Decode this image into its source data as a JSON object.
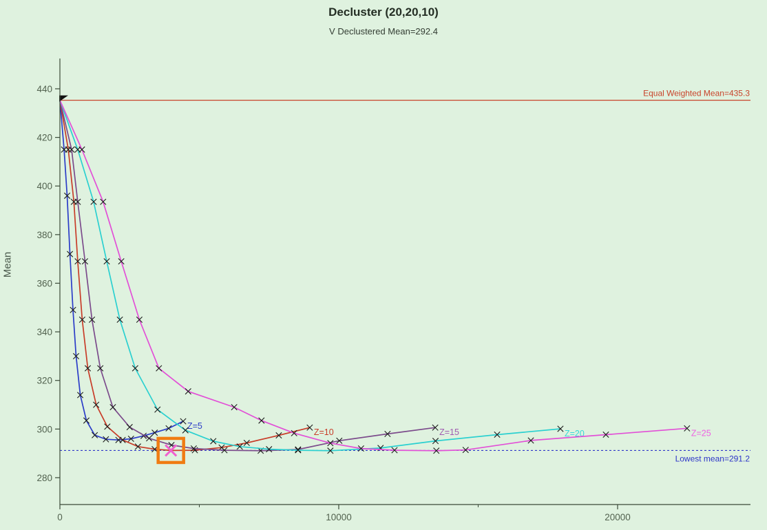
{
  "header": {
    "title": "Decluster (20,20,10)",
    "subtitle": "V Declustered Mean=292.4"
  },
  "chart_data": {
    "type": "line",
    "title": "Decluster (20,20,10)",
    "subtitle": "V Declustered Mean=292.4",
    "xlabel": "",
    "ylabel": "Mean",
    "xlim": [
      0,
      24765
    ],
    "ylim": [
      269,
      452
    ],
    "x_ticks_major": [
      0,
      10000,
      20000
    ],
    "x_ticks_minor": [
      5000,
      15000
    ],
    "y_ticks": [
      280,
      300,
      320,
      340,
      360,
      380,
      400,
      420,
      440
    ],
    "grid": "off",
    "axis_color": "#3a4a38",
    "tick_label_color": "#52624f",
    "marker_color": "#1b1b1b",
    "ref_lines": [
      {
        "name": "equal-weighted-mean",
        "value": 435.3,
        "label": "Equal Weighted Mean=435.3",
        "color": "#c8432a",
        "style": "solid"
      },
      {
        "name": "lowest-mean",
        "value": 291.2,
        "label": "Lowest mean=291.2",
        "color": "#2c34c8",
        "style": "dashed"
      }
    ],
    "start_point": {
      "x": 0,
      "y": 435.3,
      "color": "#111111"
    },
    "highlight": {
      "series": "Z=10",
      "x": 3980,
      "y": 291.2,
      "marker_color": "#f060cf",
      "box_color": "#f07c12"
    },
    "series": [
      {
        "name": "Z=5",
        "color": "#2b3cc8",
        "label_color": "#2b3cc8",
        "points": [
          [
            0,
            435.3
          ],
          [
            150,
            415
          ],
          [
            260,
            396
          ],
          [
            360,
            372
          ],
          [
            470,
            349
          ],
          [
            580,
            330
          ],
          [
            730,
            314
          ],
          [
            950,
            303.5
          ],
          [
            1250,
            297.5
          ],
          [
            1650,
            295.8
          ],
          [
            2100,
            295.5
          ],
          [
            2550,
            296
          ],
          [
            3000,
            297.2
          ],
          [
            3400,
            298.5
          ],
          [
            3900,
            300.3
          ],
          [
            4420,
            303.2
          ]
        ]
      },
      {
        "name": "Z=10",
        "color": "#c83c28",
        "label_color": "#c83c28",
        "points": [
          [
            0,
            435.3
          ],
          [
            300,
            415
          ],
          [
            500,
            393.5
          ],
          [
            640,
            369
          ],
          [
            800,
            345
          ],
          [
            1000,
            325
          ],
          [
            1300,
            310
          ],
          [
            1700,
            301
          ],
          [
            2250,
            295.5
          ],
          [
            2800,
            292.8
          ],
          [
            3400,
            291.7
          ],
          [
            3980,
            291.2
          ],
          [
            4840,
            291.3
          ],
          [
            5800,
            292.4
          ],
          [
            6700,
            294.3
          ],
          [
            7850,
            297.4
          ],
          [
            8960,
            300.6
          ]
        ]
      },
      {
        "name": "Z=15",
        "color": "#7b4a8b",
        "label_color": "#a05ab0",
        "points": [
          [
            0,
            435.3
          ],
          [
            420,
            415
          ],
          [
            640,
            393.5
          ],
          [
            900,
            369
          ],
          [
            1150,
            345
          ],
          [
            1450,
            325
          ],
          [
            1900,
            309
          ],
          [
            2500,
            300.8
          ],
          [
            3200,
            296.2
          ],
          [
            4000,
            293.4
          ],
          [
            4800,
            292
          ],
          [
            5900,
            291.3
          ],
          [
            7200,
            291.1
          ],
          [
            8540,
            291.6
          ],
          [
            10020,
            295.2
          ],
          [
            11750,
            298
          ],
          [
            13460,
            300.6
          ]
        ]
      },
      {
        "name": "Z=20",
        "color": "#2ad0d0",
        "label_color": "#35d8d8",
        "points": [
          [
            0,
            435.3
          ],
          [
            640,
            415
          ],
          [
            1210,
            393.5
          ],
          [
            1680,
            369
          ],
          [
            2150,
            345
          ],
          [
            2700,
            325
          ],
          [
            3500,
            308
          ],
          [
            4500,
            299.5
          ],
          [
            5500,
            295
          ],
          [
            6450,
            292.8
          ],
          [
            7500,
            291.7
          ],
          [
            8540,
            291.3
          ],
          [
            9700,
            291.1
          ],
          [
            11500,
            292.2
          ],
          [
            13470,
            295.1
          ],
          [
            15680,
            297.7
          ],
          [
            17950,
            300.1
          ]
        ]
      },
      {
        "name": "Z=25",
        "color": "#e24fd7",
        "label_color": "#ee62e2",
        "points": [
          [
            0,
            435.3
          ],
          [
            790,
            415
          ],
          [
            1550,
            393.5
          ],
          [
            2200,
            369
          ],
          [
            2850,
            345
          ],
          [
            3550,
            325
          ],
          [
            4600,
            315.5
          ],
          [
            6250,
            309
          ],
          [
            7230,
            303.5
          ],
          [
            8400,
            298.3
          ],
          [
            9700,
            294.2
          ],
          [
            10800,
            292
          ],
          [
            12000,
            291.3
          ],
          [
            13500,
            291.1
          ],
          [
            14550,
            291.4
          ],
          [
            16890,
            295.3
          ],
          [
            19580,
            297.7
          ],
          [
            22490,
            300.3
          ]
        ]
      }
    ]
  }
}
